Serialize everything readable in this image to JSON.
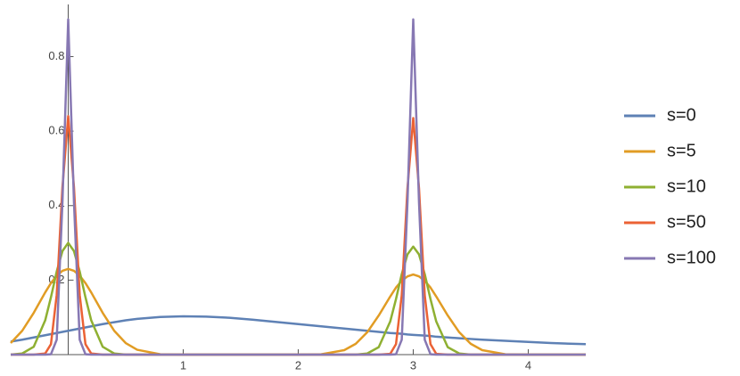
{
  "chart_data": {
    "type": "line",
    "x": [
      -0.5,
      -0.4,
      -0.3,
      -0.2,
      -0.15,
      -0.1,
      -0.05,
      0,
      0.05,
      0.1,
      0.15,
      0.2,
      0.3,
      0.4,
      0.5,
      0.6,
      0.8,
      1,
      1.2,
      1.4,
      1.6,
      1.8,
      2,
      2.2,
      2.4,
      2.5,
      2.6,
      2.7,
      2.8,
      2.85,
      2.9,
      2.95,
      3,
      3.05,
      3.1,
      3.15,
      3.2,
      3.3,
      3.4,
      3.5,
      3.6,
      3.8,
      4,
      4.2,
      4.5
    ],
    "series": [
      {
        "name": "s=0",
        "color": "#5e81b5",
        "values": [
          0.035,
          0.04,
          0.046,
          0.052,
          0.055,
          0.058,
          0.061,
          0.064,
          0.067,
          0.07,
          0.073,
          0.076,
          0.082,
          0.087,
          0.092,
          0.096,
          0.101,
          0.103,
          0.102,
          0.099,
          0.094,
          0.088,
          0.082,
          0.076,
          0.07,
          0.067,
          0.064,
          0.061,
          0.058,
          0.057,
          0.056,
          0.054,
          0.053,
          0.052,
          0.051,
          0.05,
          0.048,
          0.046,
          0.044,
          0.042,
          0.04,
          0.037,
          0.034,
          0.031,
          0.028
        ]
      },
      {
        "name": "s=5",
        "color": "#e19c24",
        "values": [
          0.031,
          0.064,
          0.112,
          0.167,
          0.192,
          0.212,
          0.225,
          0.23,
          0.225,
          0.212,
          0.192,
          0.167,
          0.112,
          0.064,
          0.031,
          0.013,
          0.001,
          0,
          0,
          0,
          0,
          0,
          0,
          0.001,
          0.012,
          0.029,
          0.06,
          0.105,
          0.156,
          0.18,
          0.198,
          0.21,
          0.215,
          0.21,
          0.198,
          0.18,
          0.156,
          0.105,
          0.06,
          0.029,
          0.012,
          0.001,
          0,
          0,
          0
        ]
      },
      {
        "name": "s=10",
        "color": "#8fb032",
        "values": [
          0,
          0.003,
          0.021,
          0.092,
          0.154,
          0.223,
          0.278,
          0.3,
          0.278,
          0.223,
          0.154,
          0.092,
          0.021,
          0.003,
          0,
          0,
          0,
          0,
          0,
          0,
          0,
          0,
          0,
          0,
          0,
          0,
          0.003,
          0.02,
          0.089,
          0.149,
          0.216,
          0.269,
          0.29,
          0.269,
          0.216,
          0.149,
          0.089,
          0.02,
          0.003,
          0,
          0,
          0,
          0,
          0,
          0
        ]
      },
      {
        "name": "s=50",
        "color": "#eb6235",
        "values": [
          0,
          0,
          0,
          0.003,
          0.028,
          0.16,
          0.45,
          0.64,
          0.45,
          0.16,
          0.028,
          0.003,
          0,
          0,
          0,
          0,
          0,
          0,
          0,
          0,
          0,
          0,
          0,
          0,
          0,
          0,
          0,
          0,
          0.002,
          0.028,
          0.159,
          0.447,
          0.635,
          0.447,
          0.159,
          0.028,
          0.002,
          0,
          0,
          0,
          0,
          0,
          0,
          0,
          0
        ]
      },
      {
        "name": "s=100",
        "color": "#8778b3",
        "values": [
          0,
          0,
          0,
          0,
          0.001,
          0.04,
          0.41,
          0.9,
          0.41,
          0.04,
          0.001,
          0,
          0,
          0,
          0,
          0,
          0,
          0,
          0,
          0,
          0,
          0,
          0,
          0,
          0,
          0,
          0,
          0,
          0,
          0.001,
          0.04,
          0.41,
          0.9,
          0.41,
          0.04,
          0.001,
          0,
          0,
          0,
          0,
          0,
          0,
          0,
          0,
          0
        ]
      }
    ],
    "xlim": [
      -0.5,
      4.5
    ],
    "ylim": [
      0,
      0.94
    ],
    "xticks": [
      1,
      2,
      3,
      4
    ],
    "yticks": [
      0.2,
      0.4,
      0.6,
      0.8
    ],
    "legend": "right"
  }
}
